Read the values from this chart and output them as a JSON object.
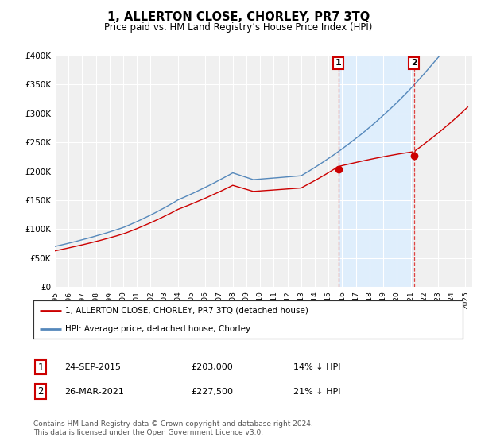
{
  "title": "1, ALLERTON CLOSE, CHORLEY, PR7 3TQ",
  "subtitle": "Price paid vs. HM Land Registry’s House Price Index (HPI)",
  "ylim": [
    0,
    400000
  ],
  "xlim_start": 1995.0,
  "xlim_end": 2025.5,
  "sale1": {
    "date_str": "24-SEP-2015",
    "date_num": 2015.73,
    "price": 203000,
    "label": "1"
  },
  "sale2": {
    "date_str": "26-MAR-2021",
    "date_num": 2021.23,
    "price": 227500,
    "label": "2"
  },
  "red_line_label": "1, ALLERTON CLOSE, CHORLEY, PR7 3TQ (detached house)",
  "blue_line_label": "HPI: Average price, detached house, Chorley",
  "footer": "Contains HM Land Registry data © Crown copyright and database right 2024.\nThis data is licensed under the Open Government Licence v3.0.",
  "red_color": "#cc0000",
  "blue_color": "#5588bb",
  "shade_color": "#ddeeff",
  "dashed_color": "#dd4444",
  "background_color": "#ffffff",
  "plot_bg_color": "#f0f0f0",
  "grid_color": "#ffffff"
}
